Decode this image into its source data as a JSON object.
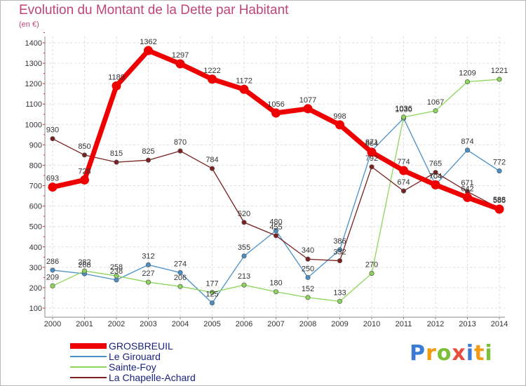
{
  "chart_data": {
    "type": "line",
    "title": "Evolution du Montant de la Dette par Habitant",
    "subtitle": "(en €)",
    "xlabel": "",
    "ylabel": "",
    "x": [
      "2000",
      "2001",
      "2002",
      "2003",
      "2004",
      "2005",
      "2006",
      "2007",
      "2008",
      "2009",
      "2010",
      "2011",
      "2012",
      "2013",
      "2014"
    ],
    "ylim": [
      100,
      1400
    ],
    "yticks": [
      100,
      200,
      300,
      400,
      500,
      600,
      700,
      800,
      900,
      1000,
      1100,
      1200,
      1300,
      1400
    ],
    "grid": true,
    "legend_position": "bottom-left",
    "series": [
      {
        "name": "GROSBREUIL",
        "color": "#ee0000",
        "values": [
          693,
          728,
          1189,
          1362,
          1297,
          1222,
          1172,
          1056,
          1077,
          998,
          864,
          774,
          704,
          642,
          585
        ]
      },
      {
        "name": "Le Girouard",
        "color": "#4a90c8",
        "values": [
          286,
          268,
          238,
          312,
          274,
          125,
          355,
          480,
          250,
          386,
          871,
          1030,
          704,
          874,
          772
        ]
      },
      {
        "name": "Sainte-Foy",
        "color": "#8bd65a",
        "values": [
          209,
          282,
          258,
          227,
          206,
          177,
          213,
          180,
          152,
          133,
          270,
          1036,
          1067,
          1209,
          1221
        ]
      },
      {
        "name": "La Chapelle-Achard",
        "color": "#7a2020",
        "values": [
          930,
          850,
          815,
          825,
          870,
          784,
          520,
          455,
          340,
          332,
          792,
          674,
          765,
          671,
          588
        ]
      }
    ]
  },
  "brand": {
    "letters": [
      "P",
      "r",
      "o",
      "x",
      "i",
      "t",
      "i"
    ],
    "colors": [
      "#3a7bd5",
      "#f39c12",
      "#7cbf3a",
      "#e74c3c",
      "#3a7bd5",
      "#f39c12",
      "#7cbf3a"
    ]
  }
}
